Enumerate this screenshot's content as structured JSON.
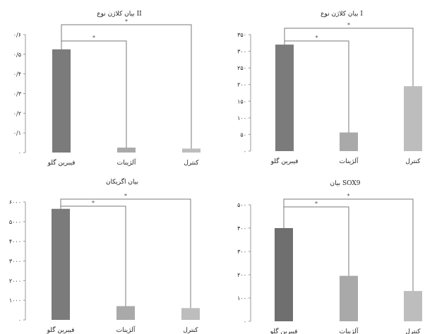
{
  "chart_data": [
    {
      "type": "bar",
      "title": "بیان کلاژن نوع II",
      "categories": [
        "فیبرین گلو",
        "آلژینات",
        "کنترل"
      ],
      "values": [
        0.525,
        0.025,
        0.02
      ],
      "ylim": [
        0,
        0.6
      ],
      "yticks": [
        "۰",
        "۰/۱",
        "۰/۲",
        "۰/۳",
        "۰/۴",
        "۰/۵",
        "۰/۶"
      ],
      "bar_colors": [
        "#7b7b7b",
        "#a9a9a9",
        "#bdbdbd"
      ],
      "significance": [
        "*",
        "*"
      ]
    },
    {
      "type": "bar",
      "title": "بیان کلاژن نوع I",
      "categories": [
        "فیبرین گلو",
        "آلژینات",
        "کنترل"
      ],
      "values": [
        320,
        56,
        195
      ],
      "ylim": [
        0,
        350
      ],
      "yticks": [
        "۰",
        "۵۰",
        "۱۰۰",
        "۱۵۰",
        "۲۰۰",
        "۲۵۰",
        "۳۰۰",
        "۳۵۰"
      ],
      "bar_colors": [
        "#7b7b7b",
        "#a9a9a9",
        "#bdbdbd"
      ],
      "significance": [
        "*",
        "*"
      ]
    },
    {
      "type": "bar",
      "title": "بیان اگریکان",
      "categories": [
        "فیبرین گلو",
        "آلژینات",
        "کنترل"
      ],
      "values": [
        5650,
        700,
        600
      ],
      "ylim": [
        0,
        6000
      ],
      "yticks": [
        "۰",
        "۱۰۰۰",
        "۲۰۰۰",
        "۳۰۰۰",
        "۴۰۰۰",
        "۵۰۰۰",
        "۶۰۰۰"
      ],
      "bar_colors": [
        "#7b7b7b",
        "#a9a9a9",
        "#bdbdbd"
      ],
      "significance": [
        "*",
        "*"
      ]
    },
    {
      "type": "bar",
      "title": "بیان SOX9",
      "categories": [
        "فیبرین گلو",
        "آلژینات",
        "کنترل"
      ],
      "values": [
        400,
        195,
        130
      ],
      "ylim": [
        0,
        500
      ],
      "yticks": [
        "۰",
        "۱۰۰",
        "۲۰۰",
        "۳۰۰",
        "۴۰۰",
        "۵۰۰"
      ],
      "bar_colors": [
        "#6f6f6f",
        "#a9a9a9",
        "#bdbdbd"
      ],
      "significance": [
        "*",
        "*"
      ]
    }
  ]
}
